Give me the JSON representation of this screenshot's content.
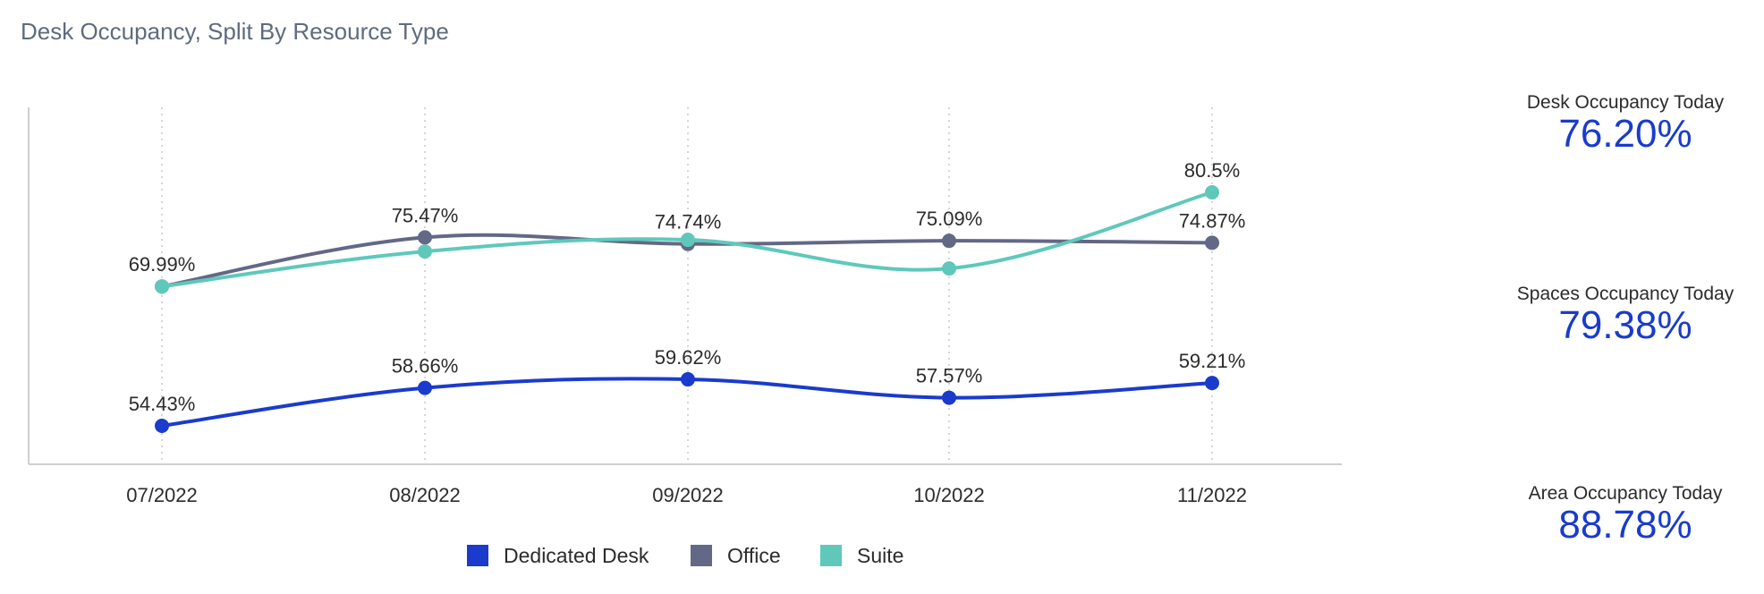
{
  "title": "Desk Occupancy, Split By Resource Type",
  "colors": {
    "dedicated_desk": "#1a3bcc",
    "office": "#636886",
    "suite": "#5fc8bb",
    "kpi_value": "#1a3bcc",
    "title": "#5f6b7d"
  },
  "chart_data": {
    "type": "line",
    "title": "Desk Occupancy, Split By Resource Type",
    "xlabel": "",
    "ylabel": "",
    "ylim": [
      50,
      85
    ],
    "grid": "vertical dotted",
    "legend_position": "bottom",
    "categories": [
      "07/2022",
      "08/2022",
      "09/2022",
      "10/2022",
      "11/2022"
    ],
    "series": [
      {
        "name": "Dedicated Desk",
        "color": "#1a3bcc",
        "values": [
          54.43,
          58.66,
          59.62,
          57.57,
          59.21
        ],
        "labels": [
          "54.43%",
          "58.66%",
          "59.62%",
          "57.57%",
          "59.21%"
        ]
      },
      {
        "name": "Office",
        "color": "#636886",
        "values": [
          69.99,
          75.47,
          74.74,
          75.09,
          74.87
        ],
        "labels": [
          "69.99%",
          "75.47%",
          "74.74%",
          "75.09%",
          "74.87%"
        ]
      },
      {
        "name": "Suite",
        "color": "#5fc8bb",
        "values": [
          69.99,
          73.9,
          75.2,
          72.0,
          80.5
        ],
        "labels": [
          "",
          "",
          "",
          "",
          "80.5%"
        ]
      }
    ]
  },
  "kpis": {
    "desk": {
      "label": "Desk Occupancy Today",
      "value": "76.20%"
    },
    "spaces": {
      "label": "Spaces Occupancy Today",
      "value": "79.38%"
    },
    "area": {
      "label": "Area Occupancy Today",
      "value": "88.78%"
    }
  }
}
